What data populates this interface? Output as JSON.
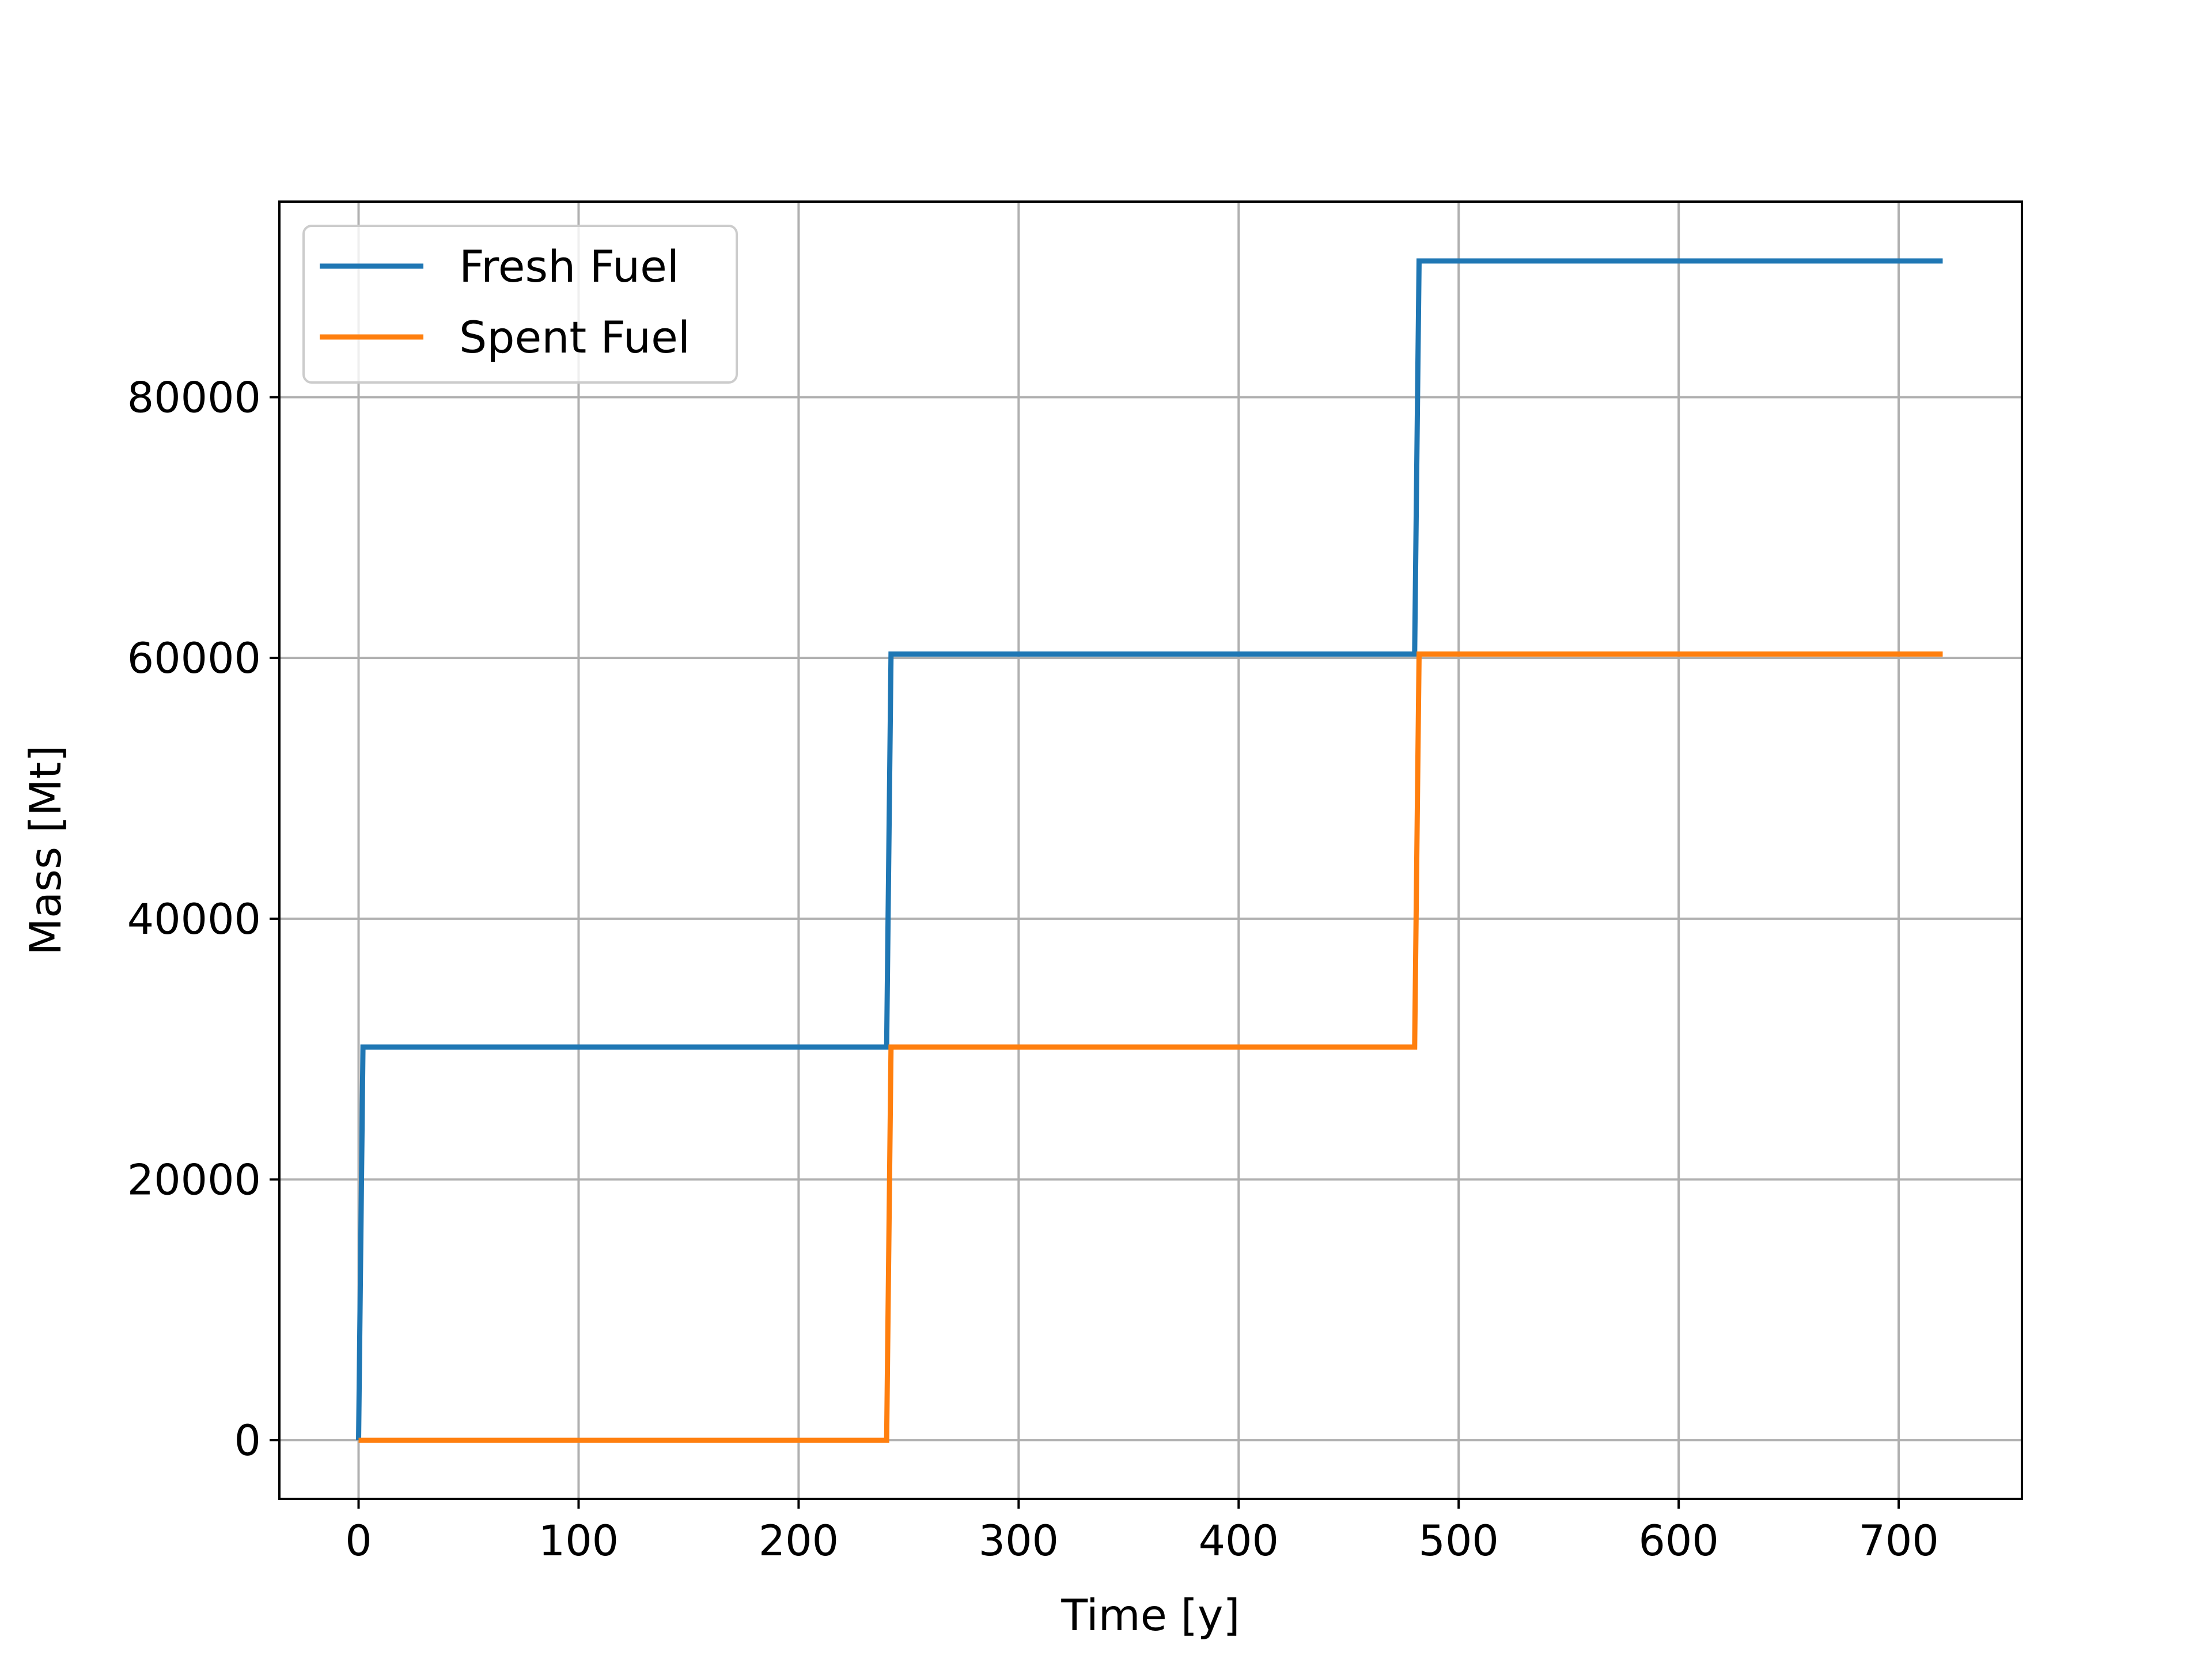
{
  "chart_data": {
    "type": "line",
    "step": true,
    "xlabel": "Time  [y]",
    "ylabel": "Mass  [Mt]",
    "xlim": [
      -36,
      756
    ],
    "ylim": [
      -4500,
      95000
    ],
    "xticks": [
      0,
      100,
      200,
      300,
      400,
      500,
      600,
      700
    ],
    "yticks": [
      0,
      20000,
      40000,
      60000,
      80000
    ],
    "grid": true,
    "legend_position": "upper-left",
    "series": [
      {
        "name": "Fresh Fuel",
        "color": "#1f77b4",
        "points": [
          [
            0,
            0
          ],
          [
            2,
            30150
          ],
          [
            240,
            30150
          ],
          [
            242,
            60300
          ],
          [
            480,
            60300
          ],
          [
            482,
            90450
          ],
          [
            720,
            90450
          ]
        ]
      },
      {
        "name": "Spent Fuel",
        "color": "#ff7f0e",
        "points": [
          [
            0,
            0
          ],
          [
            240,
            0
          ],
          [
            242,
            30150
          ],
          [
            480,
            30150
          ],
          [
            482,
            60300
          ],
          [
            720,
            60300
          ]
        ]
      }
    ]
  }
}
